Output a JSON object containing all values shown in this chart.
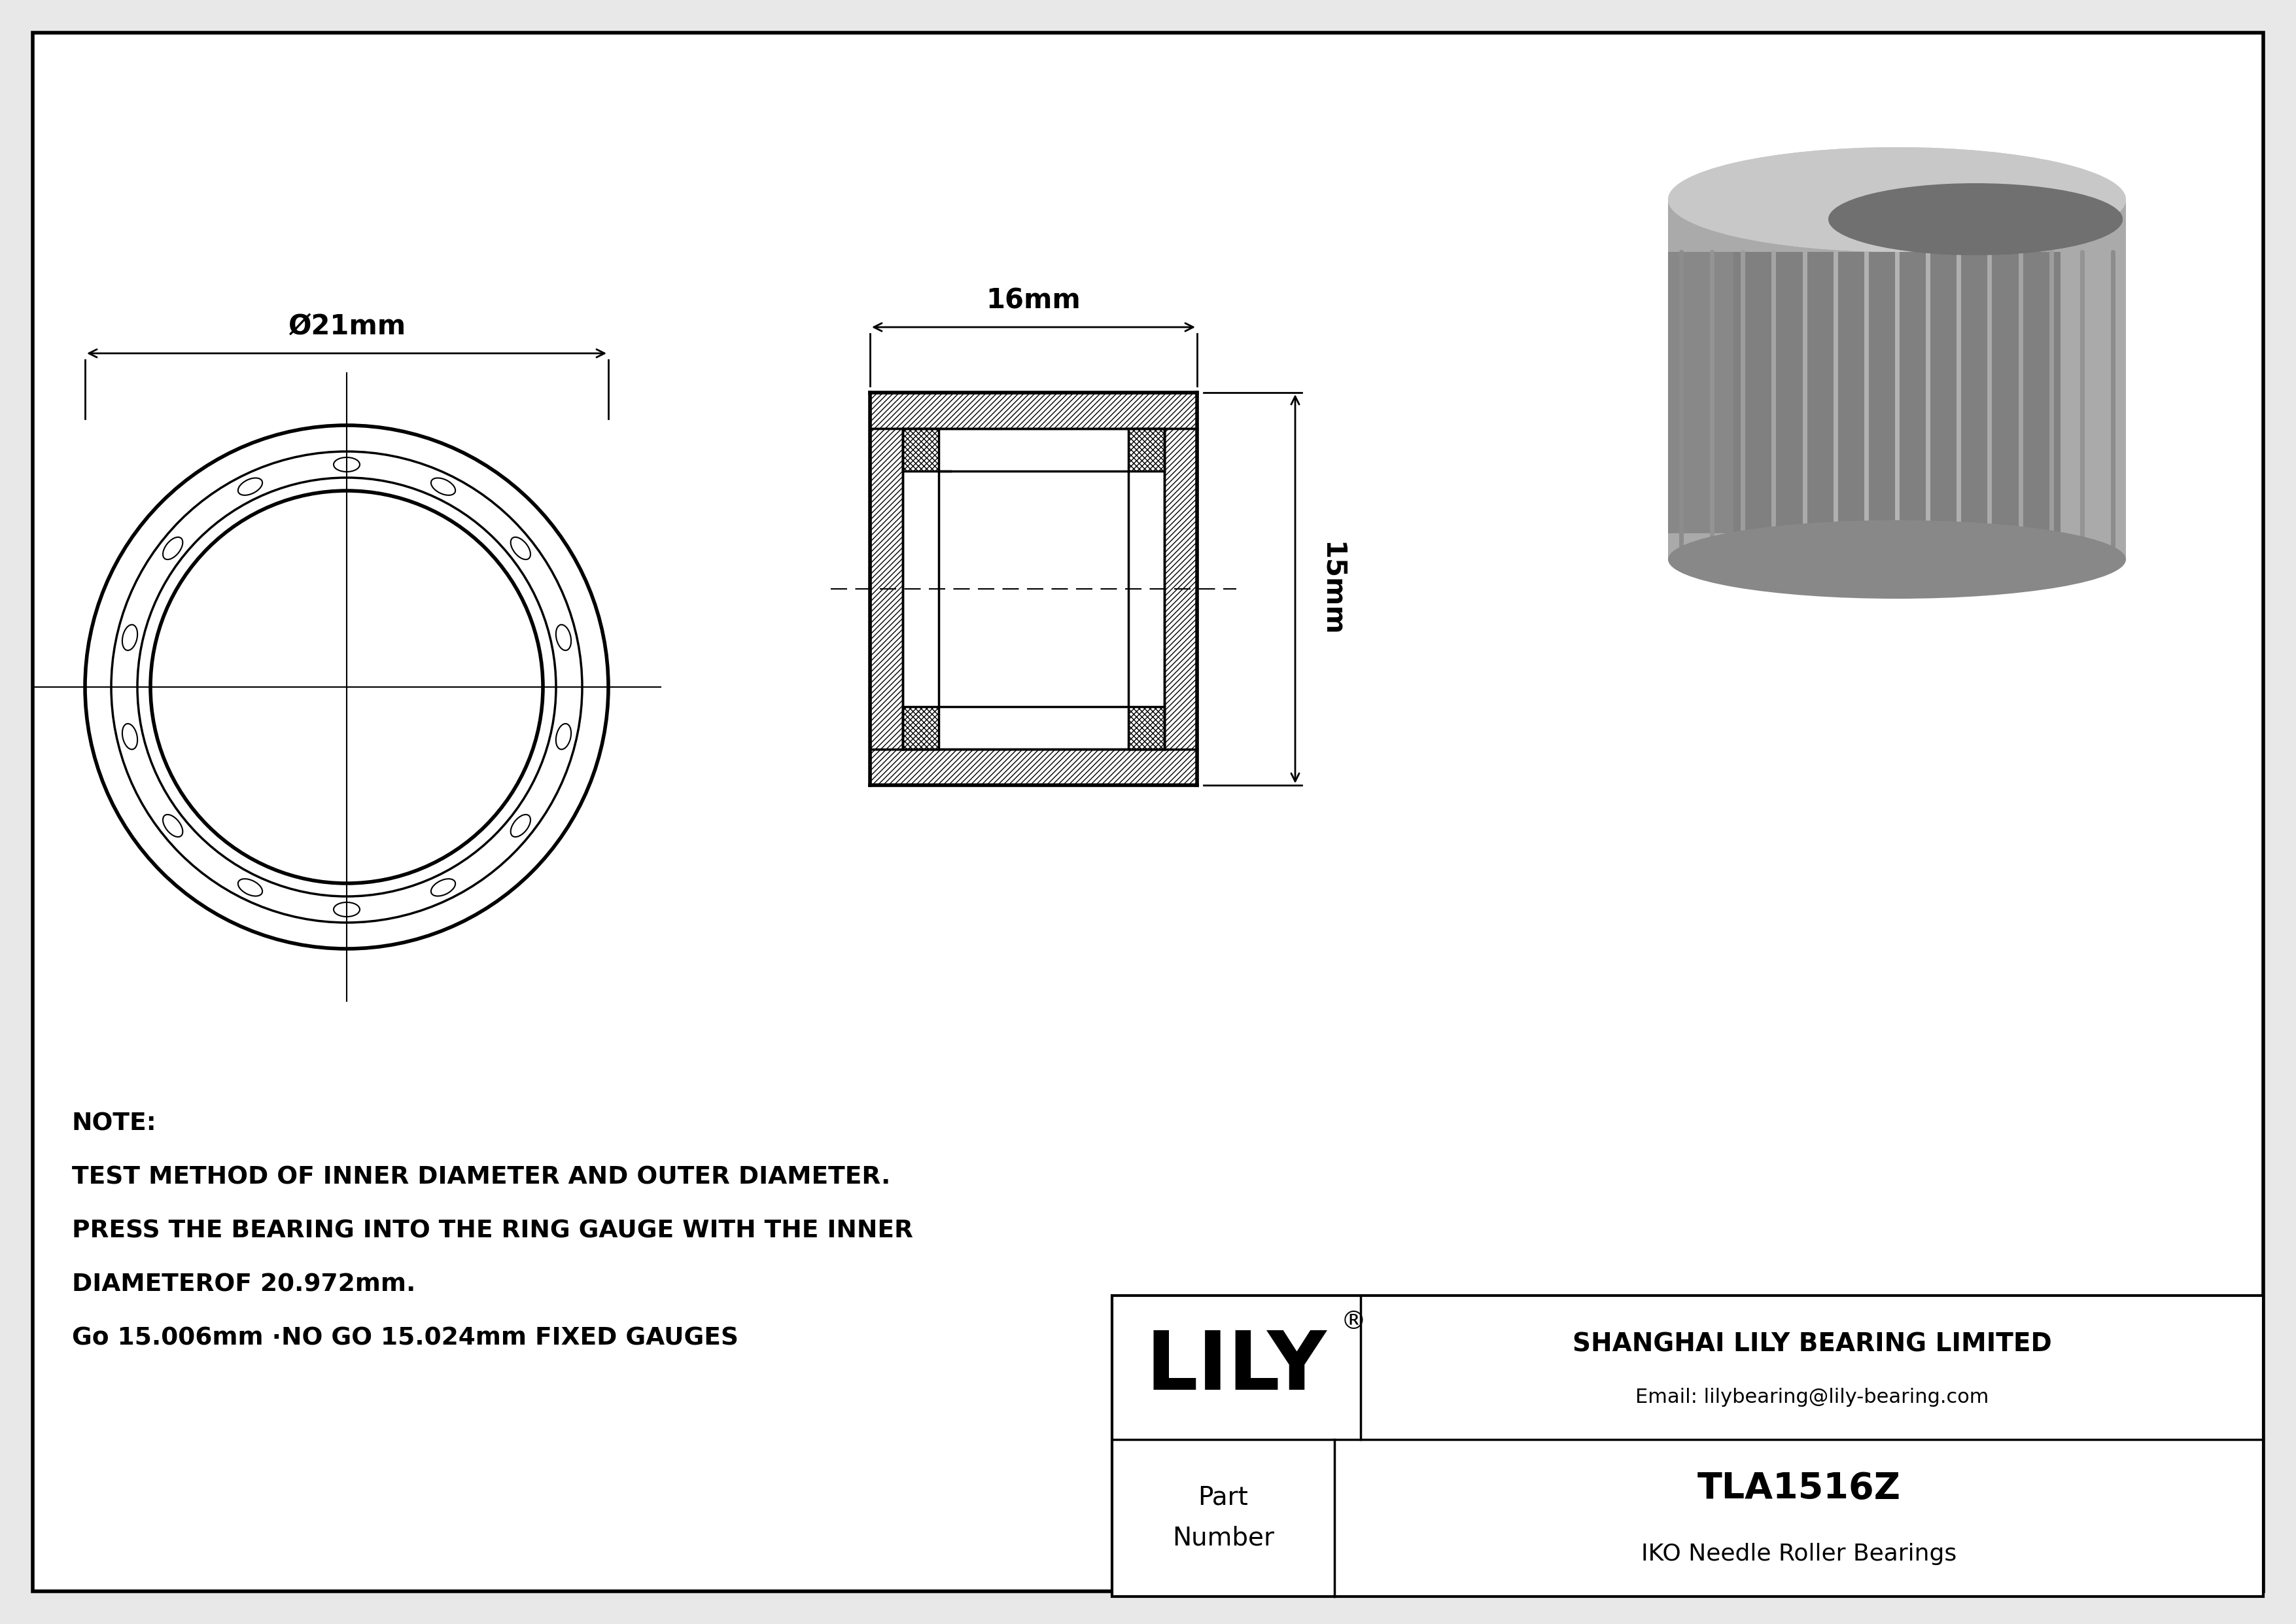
{
  "bg_color": "#e8e8e8",
  "drawing_bg": "#ffffff",
  "line_color": "#000000",
  "note_line1": "NOTE:",
  "note_line2": "TEST METHOD OF INNER DIAMETER AND OUTER DIAMETER.",
  "note_line3": "PRESS THE BEARING INTO THE RING GAUGE WITH THE INNER",
  "note_line4": "DIAMETEROF 20.972mm.",
  "note_line5": "Go 15.006mm ·NO GO 15.024mm FIXED GAUGES",
  "dim_od": "Ø21mm",
  "dim_width": "16mm",
  "dim_height": "15mm",
  "company_name": "SHANGHAI LILY BEARING LIMITED",
  "company_email": "Email: lilybearing@lily-bearing.com",
  "part_label": "Part\nNumber",
  "part_number": "TLA1516Z",
  "part_type": "IKO Needle Roller Bearings",
  "brand": "LILY",
  "brand_reg": "®"
}
